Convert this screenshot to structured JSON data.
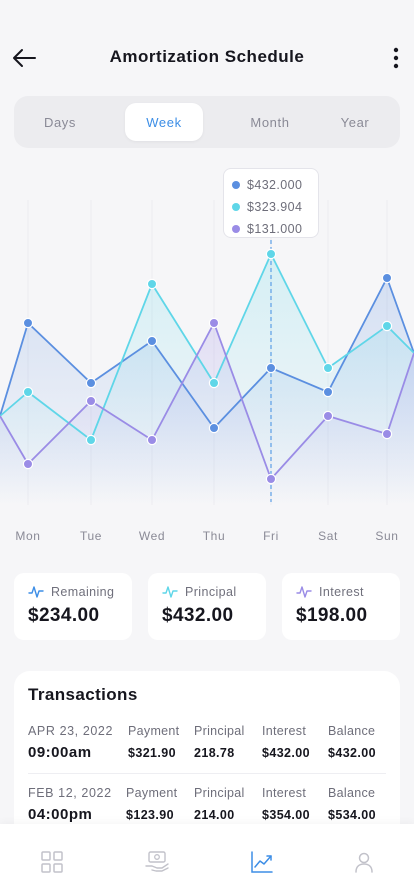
{
  "header": {
    "title": "Amortization Schedule",
    "back_icon": "arrow-left-icon",
    "more_icon": "more-vertical-icon"
  },
  "period_tabs": [
    {
      "label": "Days",
      "active": false
    },
    {
      "label": "Week",
      "active": true
    },
    {
      "label": "Month",
      "active": false
    },
    {
      "label": "Year",
      "active": false
    }
  ],
  "colors": {
    "accent": "#3d8ee6",
    "blue": "#5b8fe0",
    "cyan": "#5fd6e8",
    "purple": "#9a8ce6"
  },
  "chart_data": {
    "type": "area",
    "categories": [
      "Mon",
      "Tue",
      "Wed",
      "Thu",
      "Fri",
      "Sat",
      "Sun"
    ],
    "series": [
      {
        "values": [
          2.95,
          1.95,
          2.65,
          1.2,
          2.2,
          1.8,
          3.7
        ]
      },
      {
        "values": [
          1.8,
          1.0,
          3.6,
          1.95,
          4.1,
          2.2,
          2.9
        ]
      },
      {
        "values": [
          0.6,
          1.65,
          1.0,
          2.95,
          0.35,
          1.4,
          1.1
        ]
      }
    ],
    "highlight_index": 4,
    "tooltip": [
      "$432.000",
      "$323.904",
      "$131.000"
    ],
    "ylim": [
      0,
      5
    ],
    "grid": true,
    "legend": "none"
  },
  "stats": [
    {
      "label": "Remaining",
      "value": "$234.00",
      "icon": "pulse-icon"
    },
    {
      "label": "Principal",
      "value": "$432.00",
      "icon": "pulse-icon"
    },
    {
      "label": "Interest",
      "value": "$198.00",
      "icon": "pulse-icon"
    }
  ],
  "transactions": {
    "title": "Transactions",
    "columns": [
      "Payment",
      "Principal",
      "Interest",
      "Balance"
    ],
    "rows": [
      {
        "date": "APR 23, 2022",
        "time": "09:00am",
        "payment": "$321.90",
        "principal": "218.78",
        "interest": "$432.00",
        "balance": "$432.00"
      },
      {
        "date": "FEB 12, 2022",
        "time": "04:00pm",
        "payment": "$123.90",
        "principal": "214.00",
        "interest": "$354.00",
        "balance": "$534.00"
      }
    ]
  },
  "bottom_nav": [
    {
      "icon": "grid-icon",
      "active": false
    },
    {
      "icon": "money-hand-icon",
      "active": false
    },
    {
      "icon": "chart-icon",
      "active": true
    },
    {
      "icon": "user-icon",
      "active": false
    }
  ]
}
